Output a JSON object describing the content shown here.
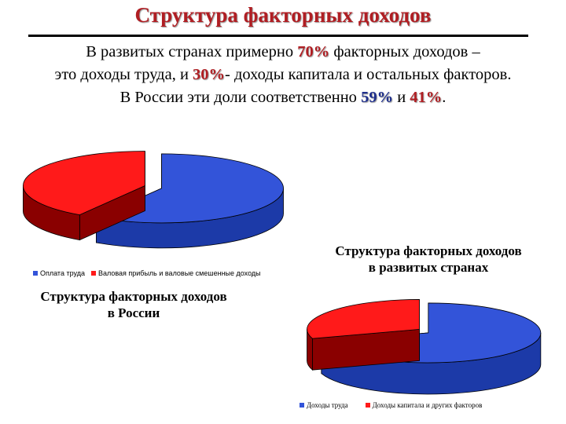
{
  "slide": {
    "title": "Структура факторных доходов",
    "intro": {
      "l1_a": "В развитых странах примерно ",
      "l1_hl": "70%",
      "l1_b": " факторных доходов –",
      "l2_a": "это доходы труда, и ",
      "l2_hl": "30%",
      "l2_b": "- доходы капитала и остальных факторов.",
      "l3_a": "В России эти доли соответственно ",
      "l3_hl1": "59%",
      "l3_mid": " и ",
      "l3_hl2": "41%",
      "l3_end": "."
    }
  },
  "colors": {
    "blue_top": "#3354d9",
    "blue_side": "#1c3aa8",
    "red_top": "#ff1a1a",
    "red_side": "#8a0000",
    "title_red": "#b01e23",
    "hl_blue": "#1f2f8c"
  },
  "chart_data": [
    {
      "type": "pie",
      "title_l1": "Структура факторных доходов",
      "title_l2": "в России",
      "slices": [
        {
          "label": "Оплата труда",
          "value": 59
        },
        {
          "label": "Валовая прибыль и валовые смешенные доходы",
          "value": 41
        }
      ]
    },
    {
      "type": "pie",
      "title_l1": "Структура факторных доходов",
      "title_l2": "в развитых странах",
      "slices": [
        {
          "label": "Доходы труда",
          "value": 70
        },
        {
          "label": "Доходы капитала и других факторов",
          "value": 30
        }
      ]
    }
  ]
}
